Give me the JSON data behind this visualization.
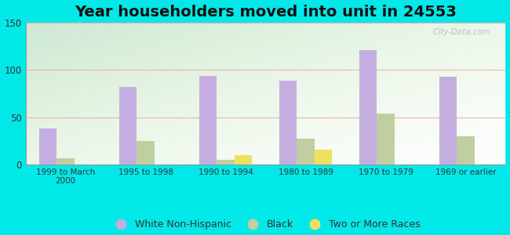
{
  "title": "Year householders moved into unit in 24553",
  "categories": [
    "1999 to March\n2000",
    "1995 to 1998",
    "1990 to 1994",
    "1980 to 1989",
    "1970 to 1979",
    "1969 or earlier"
  ],
  "white_non_hispanic": [
    38,
    82,
    94,
    89,
    121,
    93
  ],
  "black": [
    7,
    25,
    5,
    27,
    54,
    30
  ],
  "two_or_more_races": [
    0,
    0,
    10,
    16,
    0,
    0
  ],
  "white_color": "#c4aee0",
  "black_color": "#c0cfa0",
  "two_or_more_color": "#f0e060",
  "background_color": "#00e8e8",
  "ylim": [
    0,
    150
  ],
  "yticks": [
    0,
    50,
    100,
    150
  ],
  "bar_width": 0.22,
  "title_fontsize": 14,
  "legend_fontsize": 9,
  "watermark": "City-Data.com",
  "grid_color": "#f0b0b0"
}
